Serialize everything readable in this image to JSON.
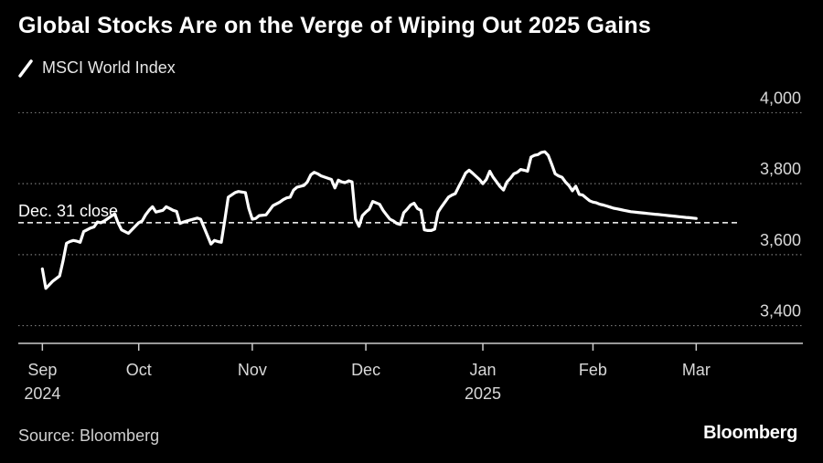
{
  "header": {
    "title": "Global Stocks Are on the Verge of Wiping Out 2025 Gains"
  },
  "legend": {
    "label": "MSCI World Index",
    "icon": "line-swatch-icon"
  },
  "footer": {
    "source": "Source: Bloomberg",
    "brand": "Bloomberg"
  },
  "colors": {
    "background": "#000000",
    "line": "#ffffff",
    "grid": "#777777",
    "axis": "#cccccc"
  },
  "chart_data": {
    "type": "line",
    "title": "Global Stocks Are on the Verge of Wiping Out 2025 Gains",
    "series": [
      {
        "name": "MSCI World Index",
        "x": [
          0,
          1,
          3,
          5,
          6,
          7,
          8,
          9,
          10,
          11,
          12,
          14,
          15,
          16,
          17,
          18,
          21,
          22,
          23,
          25,
          28,
          29,
          30,
          31,
          32,
          33,
          35,
          36,
          37,
          38,
          39,
          40,
          41,
          42,
          45,
          46,
          49,
          50,
          51,
          52,
          53,
          54,
          56,
          57,
          59,
          60,
          61,
          62,
          63,
          65,
          66,
          67,
          69,
          70,
          71,
          72,
          73,
          74,
          76,
          77,
          78,
          79,
          80,
          81,
          84,
          85,
          86,
          87,
          88,
          89,
          90,
          91,
          92,
          93,
          94,
          95,
          96,
          98,
          99,
          100,
          101,
          102,
          103,
          104,
          105,
          106,
          107,
          108,
          109,
          110,
          111,
          112,
          113,
          114,
          115,
          116,
          118,
          119,
          120,
          121,
          122,
          123,
          124,
          125,
          127,
          128,
          129,
          130,
          131,
          132,
          133,
          134,
          135,
          136,
          137,
          138,
          139,
          140,
          141,
          142,
          143,
          144,
          145,
          146,
          147,
          148,
          149,
          150,
          151,
          152,
          153,
          154,
          155,
          156,
          157,
          158,
          159,
          160,
          161,
          162,
          163,
          164,
          165,
          166,
          167,
          168,
          169,
          170,
          171,
          172,
          173,
          174,
          175,
          176,
          177,
          178,
          179,
          180,
          181,
          182,
          183,
          184,
          185,
          186,
          187,
          188,
          189,
          190
        ],
        "values": [
          3560,
          3505,
          3525,
          3540,
          3582,
          3632,
          3637,
          3640,
          3638,
          3635,
          3665,
          3675,
          3678,
          3692,
          3690,
          3695,
          3715,
          3690,
          3670,
          3660,
          3690,
          3695,
          3712,
          3725,
          3735,
          3720,
          3725,
          3735,
          3730,
          3725,
          3722,
          3688,
          3692,
          3695,
          3703,
          3700,
          3630,
          3640,
          3637,
          3635,
          3697,
          3762,
          3775,
          3778,
          3775,
          3730,
          3700,
          3702,
          3710,
          3712,
          3725,
          3738,
          3748,
          3755,
          3760,
          3762,
          3782,
          3790,
          3795,
          3805,
          3825,
          3832,
          3828,
          3822,
          3812,
          3788,
          3810,
          3805,
          3803,
          3808,
          3805,
          3700,
          3680,
          3710,
          3720,
          3728,
          3750,
          3742,
          3725,
          3712,
          3700,
          3695,
          3688,
          3685,
          3718,
          3728,
          3740,
          3745,
          3730,
          3725,
          3670,
          3668,
          3668,
          3672,
          3720,
          3735,
          3762,
          3768,
          3772,
          3792,
          3810,
          3830,
          3838,
          3830,
          3812,
          3800,
          3812,
          3835,
          3818,
          3805,
          3792,
          3782,
          3805,
          3815,
          3828,
          3832,
          3840,
          3838,
          3835,
          3875,
          3880,
          3882,
          3888,
          3890,
          3880,
          3855,
          3828,
          3822,
          3818,
          3805,
          3795,
          3780,
          3793,
          3770,
          3768,
          3760,
          3752,
          3748,
          3746,
          3742,
          3740,
          3737,
          3734,
          3731,
          3729,
          3727,
          3725,
          3723,
          3721,
          3720,
          3719,
          3718,
          3717,
          3716,
          3715,
          3714,
          3713,
          3712,
          3711,
          3710,
          3709,
          3708,
          3707,
          3706,
          3705,
          3704,
          3703,
          3702
        ]
      }
    ],
    "reference_line": {
      "label": "Dec. 31 close",
      "value": 3690
    },
    "x_ticks": [
      {
        "pos": 0,
        "label": "Sep",
        "sublabel": "2024"
      },
      {
        "pos": 28,
        "label": "Oct",
        "sublabel": ""
      },
      {
        "pos": 61,
        "label": "Nov",
        "sublabel": ""
      },
      {
        "pos": 94,
        "label": "Dec",
        "sublabel": ""
      },
      {
        "pos": 128,
        "label": "Jan",
        "sublabel": "2025"
      },
      {
        "pos": 160,
        "label": "Feb",
        "sublabel": ""
      },
      {
        "pos": 190,
        "label": "Mar",
        "sublabel": ""
      }
    ],
    "y_ticks": [
      3400,
      3600,
      3800,
      4000
    ],
    "y_tick_labels": [
      "3,400",
      "3,600",
      "3,800",
      "4,000"
    ],
    "ylim": [
      3350,
      4050
    ],
    "xlim": [
      -7,
      221
    ],
    "grid": true,
    "legend_position": "top-left",
    "xlabel": "",
    "ylabel": ""
  }
}
